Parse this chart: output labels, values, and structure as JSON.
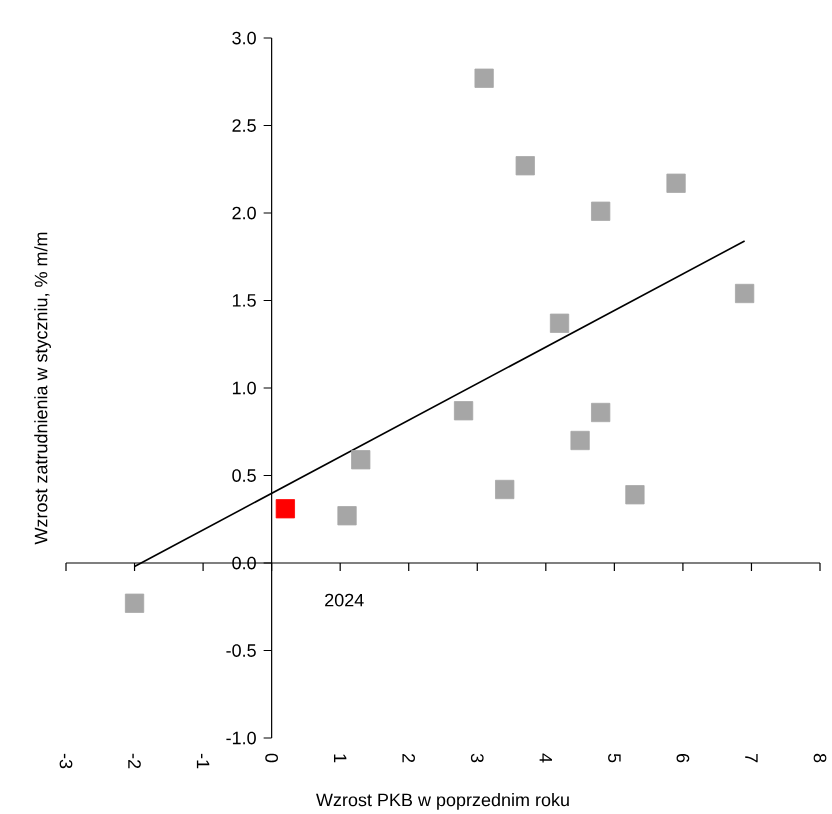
{
  "chart_data": {
    "type": "scatter",
    "xlabel": "Wzrost PKB w poprzednim roku",
    "ylabel": "Wzrost zatrudnienia w styczniu, % m/m",
    "xlim": [
      -3,
      8
    ],
    "ylim": [
      -1,
      3
    ],
    "xticks": [
      -3,
      -2,
      -1,
      0,
      1,
      2,
      3,
      4,
      5,
      6,
      7,
      8
    ],
    "yticks": [
      {
        "value": -1,
        "label": "-1.0"
      },
      {
        "value": -0.5,
        "label": "-0.5"
      },
      {
        "value": 0,
        "label": "0.0"
      },
      {
        "value": 0.5,
        "label": "0.5"
      },
      {
        "value": 1,
        "label": "1.0"
      },
      {
        "value": 1.5,
        "label": "1.5"
      },
      {
        "value": 2,
        "label": "2.0"
      },
      {
        "value": 2.5,
        "label": "2.5"
      },
      {
        "value": 3,
        "label": "3.0"
      }
    ],
    "marker": "square",
    "series": [
      {
        "color": "#a6a6a6",
        "x": [
          -2.0,
          1.1,
          1.3,
          2.8,
          3.1,
          3.4,
          3.7,
          4.2,
          4.5,
          4.8,
          4.8,
          5.3,
          5.9,
          6.9
        ],
        "values": [
          -0.23,
          0.27,
          0.59,
          0.87,
          2.77,
          0.42,
          2.27,
          1.37,
          0.7,
          2.01,
          0.86,
          0.39,
          2.17,
          1.54
        ]
      },
      {
        "color": "#ff0000",
        "x": [
          0.2
        ],
        "values": [
          0.31
        ]
      },
      {
        "type": "line",
        "color": "#000000",
        "marker": "none",
        "line_style": "solid",
        "x": [
          -2.0,
          6.9
        ],
        "values": [
          -0.02,
          1.84
        ]
      }
    ],
    "annotations": [
      "2024"
    ]
  }
}
